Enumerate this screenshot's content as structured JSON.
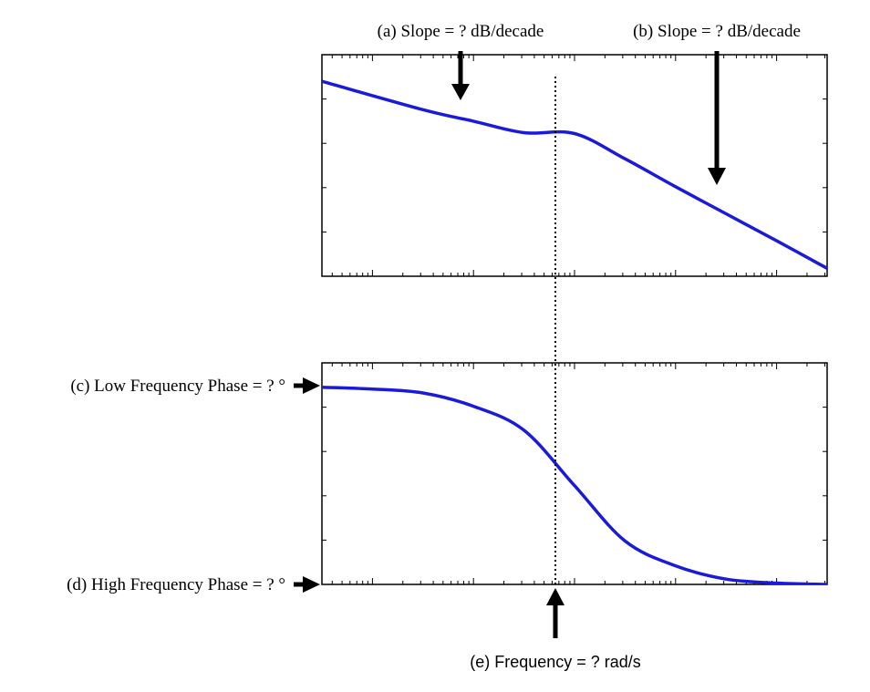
{
  "annotations": {
    "a": "(a) Slope = ? dB/decade",
    "b": "(b) Slope = ? dB/decade",
    "c": "(c) Low Frequency Phase = ? °",
    "d": "(d) High Frequency Phase = ? °",
    "e": "(e) Frequency = ? rad/s"
  },
  "chart_data": [
    {
      "type": "line",
      "panel": "magnitude",
      "x_scale": "log",
      "xlim_decades": [
        -2.5,
        2.5
      ],
      "ylim": [
        0,
        5
      ],
      "ticks_shown": false,
      "corner_decade": 0,
      "series": [
        {
          "x_decades": [
            -2.5,
            -1.5,
            -1.0,
            -0.5,
            0.0,
            0.5,
            1.0,
            1.5,
            2.0,
            2.5
          ],
          "y": [
            4.4,
            3.76,
            3.5,
            3.24,
            3.22,
            2.65,
            2.02,
            1.41,
            0.8,
            0.18
          ]
        }
      ],
      "color": "#1a1adb"
    },
    {
      "type": "line",
      "panel": "phase",
      "x_scale": "log",
      "xlim_decades": [
        -2.5,
        2.5
      ],
      "ylim": [
        0,
        5
      ],
      "ticks_shown": false,
      "corner_decade": 0,
      "series": [
        {
          "x_decades": [
            -2.5,
            -2.0,
            -1.5,
            -1.0,
            -0.5,
            0.0,
            0.5,
            1.0,
            1.5,
            2.0,
            2.5
          ],
          "y": [
            4.45,
            4.41,
            4.32,
            4.02,
            3.48,
            2.23,
            0.98,
            0.42,
            0.12,
            0.03,
            0.0
          ]
        }
      ],
      "color": "#1a1adb"
    }
  ]
}
